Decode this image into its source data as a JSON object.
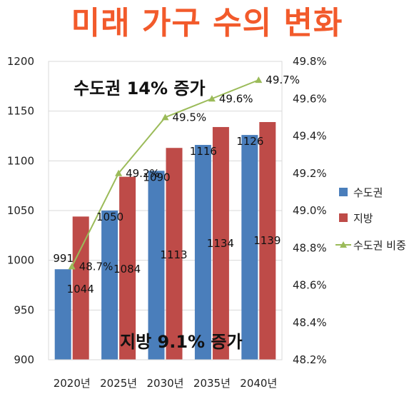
{
  "title": "미래 가구 수의 변화",
  "colors": {
    "title": "#f25a2b",
    "capital": "#4a7ebb",
    "regional": "#be4b48",
    "share": "#9bbb59",
    "grid": "#d9d9d9"
  },
  "annotations": {
    "capital_increase": "수도권 14% 증가",
    "regional_increase": "지방 9.1% 증가"
  },
  "chart_data": {
    "type": "bar",
    "categories": [
      "2020년",
      "2025년",
      "2030년",
      "2035년",
      "2040년"
    ],
    "series": [
      {
        "name": "수도권",
        "type": "bar",
        "axis": "left",
        "values": [
          991,
          1050,
          1090,
          1116,
          1126
        ]
      },
      {
        "name": "지방",
        "type": "bar",
        "axis": "left",
        "values": [
          1044,
          1084,
          1113,
          1134,
          1139
        ]
      },
      {
        "name": "수도권 비중",
        "type": "line",
        "axis": "right",
        "values": [
          48.7,
          49.2,
          49.5,
          49.6,
          49.7
        ],
        "unit": "%"
      }
    ],
    "ylim": [
      900,
      1200
    ],
    "yticks": [
      900,
      950,
      1000,
      1050,
      1100,
      1150,
      1200
    ],
    "y2lim": [
      48.2,
      49.8
    ],
    "y2ticks": [
      "48.2%",
      "48.4%",
      "48.6%",
      "48.8%",
      "49.0%",
      "49.2%",
      "49.4%",
      "49.6%",
      "49.8%"
    ],
    "grid": true,
    "legend": "right"
  }
}
